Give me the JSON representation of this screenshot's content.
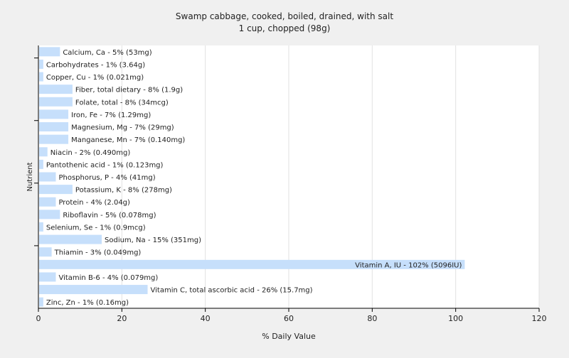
{
  "chart_data": {
    "type": "bar",
    "orientation": "horizontal",
    "title": "Swamp cabbage, cooked, boiled, drained, with salt",
    "subtitle": "1 cup, chopped (98g)",
    "xlabel": "% Daily Value",
    "ylabel": "Nutrient",
    "xlim": [
      0,
      120
    ],
    "xticks": [
      0,
      20,
      40,
      60,
      80,
      100,
      120
    ],
    "grid": true,
    "categories": [
      "Calcium, Ca",
      "Carbohydrates",
      "Copper, Cu",
      "Fiber, total dietary",
      "Folate, total",
      "Iron, Fe",
      "Magnesium, Mg",
      "Manganese, Mn",
      "Niacin",
      "Pantothenic acid",
      "Phosphorus, P",
      "Potassium, K",
      "Protein",
      "Riboflavin",
      "Selenium, Se",
      "Sodium, Na",
      "Thiamin",
      "Vitamin A, IU",
      "Vitamin B-6",
      "Vitamin C, total ascorbic acid",
      "Zinc, Zn"
    ],
    "values": [
      5,
      1,
      1,
      8,
      8,
      7,
      7,
      7,
      2,
      1,
      4,
      8,
      4,
      5,
      1,
      15,
      3,
      102,
      4,
      26,
      1
    ],
    "labels": [
      "Calcium, Ca - 5% (53mg)",
      "Carbohydrates - 1% (3.64g)",
      "Copper, Cu - 1% (0.021mg)",
      "Fiber, total dietary - 8% (1.9g)",
      "Folate, total - 8% (34mcg)",
      "Iron, Fe - 7% (1.29mg)",
      "Magnesium, Mg - 7% (29mg)",
      "Manganese, Mn - 7% (0.140mg)",
      "Niacin - 2% (0.490mg)",
      "Pantothenic acid - 1% (0.123mg)",
      "Phosphorus, P - 4% (41mg)",
      "Potassium, K - 8% (278mg)",
      "Protein - 4% (2.04g)",
      "Riboflavin - 5% (0.078mg)",
      "Selenium, Se - 1% (0.9mcg)",
      "Sodium, Na - 15% (351mg)",
      "Thiamin - 3% (0.049mg)",
      "Vitamin A, IU - 102% (5096IU)",
      "Vitamin B-6 - 4% (0.079mg)",
      "Vitamin C, total ascorbic acid - 26% (15.7mg)",
      "Zinc, Zn - 1% (0.16mg)"
    ],
    "colors": {
      "bar": "#c6dffb",
      "background": "#f0f0f0",
      "plot_background": "#ffffff",
      "grid": "#e2e2e2",
      "axis": "#000000"
    }
  }
}
